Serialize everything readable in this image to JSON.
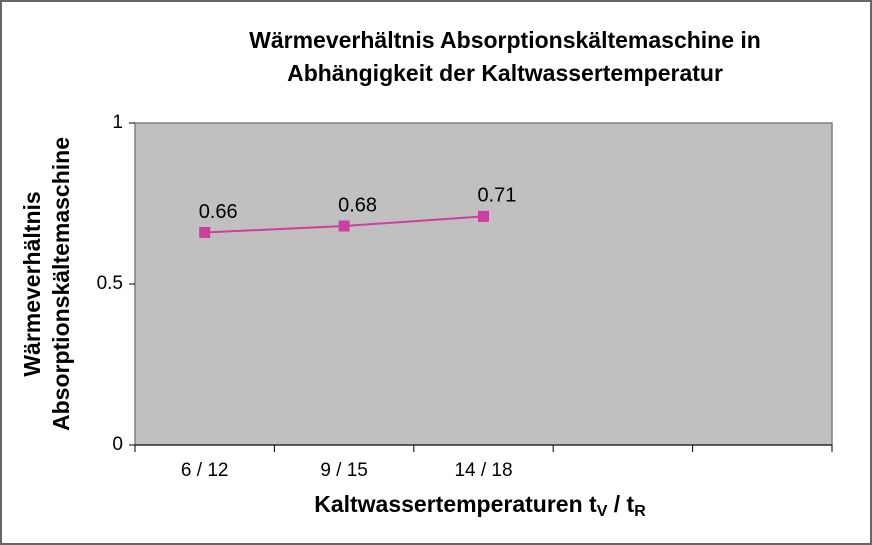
{
  "chart_data": {
    "type": "line",
    "title": [
      "Wärmeverhältnis Absorptionskältemaschine in",
      "Abhängigkeit der Kaltwassertemperatur"
    ],
    "y_label": [
      "Wärmeverhältnis",
      "Absorptionskältemaschine"
    ],
    "x_label": [
      "Kaltwassertemperaturen t",
      "V",
      " / t",
      "R"
    ],
    "categories": [
      "6 / 12",
      "9 / 15",
      "14 / 18",
      null,
      null
    ],
    "series": [
      {
        "name": "Wärmeverhältnis",
        "color": "#cc3fa0",
        "values": [
          0.66,
          0.68,
          0.71,
          null,
          null
        ]
      }
    ],
    "ylim": [
      0,
      1
    ],
    "yticks": [
      0,
      0.5,
      1
    ],
    "grid": false,
    "plot_background": "#c0c0c0"
  }
}
